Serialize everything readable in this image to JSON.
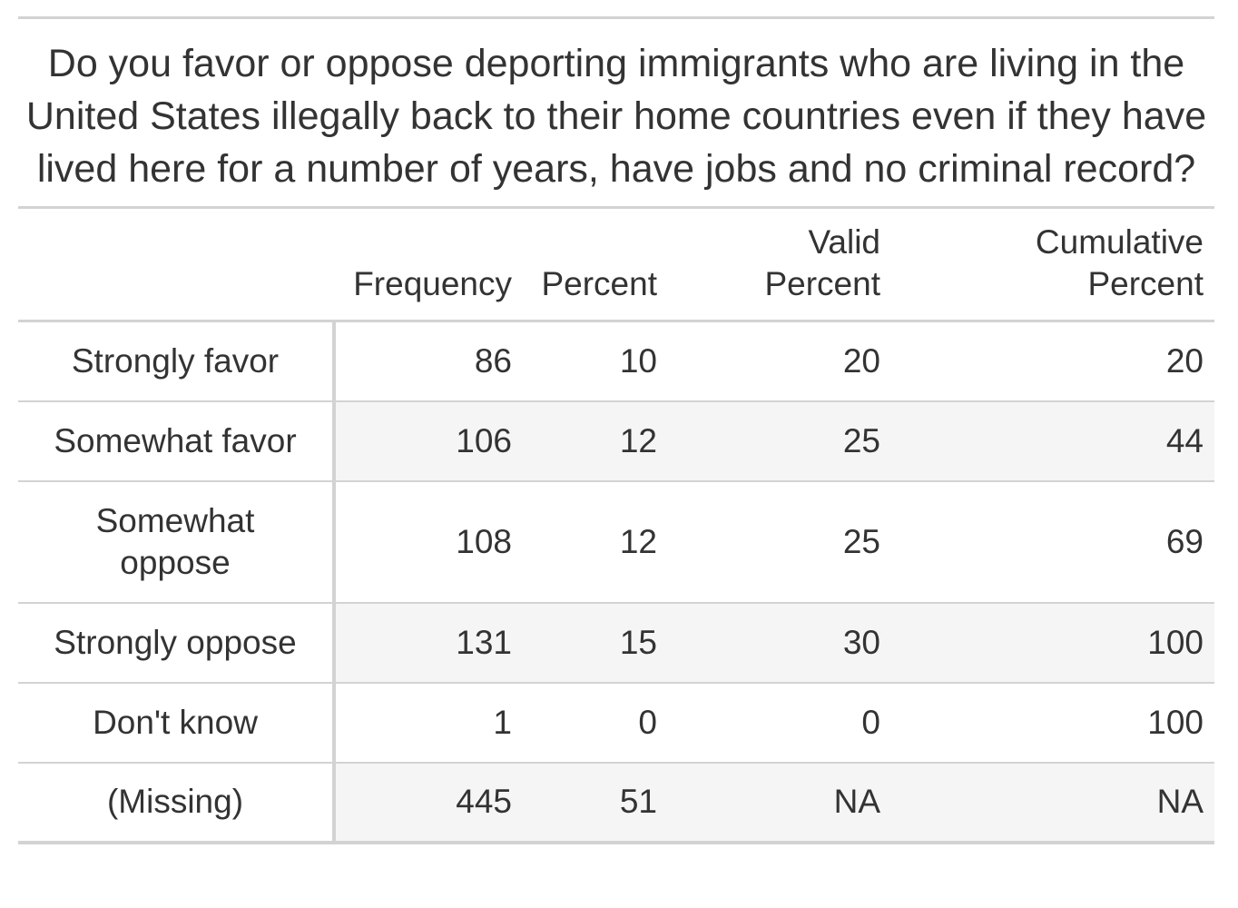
{
  "chart_data": {
    "type": "table",
    "title": "Do you favor or oppose deporting immigrants who are living in the United States illegally back to their home countries even if they have lived here for a number of years, have jobs and no criminal record?",
    "columns": {
      "frequency": "Frequency",
      "percent": "Percent",
      "valid_top": "Valid",
      "valid_bottom": "Percent",
      "cumulative_top": "Cumulative",
      "cumulative_bottom": "Percent"
    },
    "rows": [
      {
        "label": "Strongly favor",
        "frequency": "86",
        "percent": "10",
        "valid_percent": "20",
        "cumulative_percent": "20"
      },
      {
        "label": "Somewhat favor",
        "frequency": "106",
        "percent": "12",
        "valid_percent": "25",
        "cumulative_percent": "44"
      },
      {
        "label": "Somewhat oppose",
        "frequency": "108",
        "percent": "12",
        "valid_percent": "25",
        "cumulative_percent": "69"
      },
      {
        "label": "Strongly oppose",
        "frequency": "131",
        "percent": "15",
        "valid_percent": "30",
        "cumulative_percent": "100"
      },
      {
        "label": "Don't know",
        "frequency": "1",
        "percent": "0",
        "valid_percent": "0",
        "cumulative_percent": "100"
      },
      {
        "label": "(Missing)",
        "frequency": "445",
        "percent": "51",
        "valid_percent": "NA",
        "cumulative_percent": "NA"
      }
    ],
    "colors": {
      "text": "#333333",
      "rule": "#d3d3d3",
      "stripe": "#f5f5f5"
    }
  }
}
